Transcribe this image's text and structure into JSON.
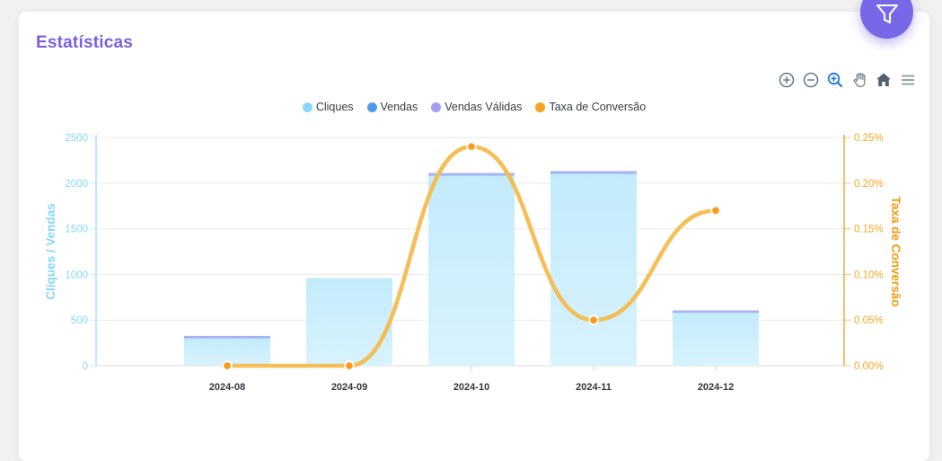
{
  "page": {
    "title": "Estatísticas"
  },
  "header": {
    "filter_button": {
      "icon": "funnel-icon",
      "color": "#7668e6"
    }
  },
  "toolbar": {
    "icons": [
      "zoom-in",
      "zoom-out",
      "selection-zoom",
      "panning",
      "reset-zoom-home",
      "menu"
    ],
    "active_icon": "selection-zoom",
    "active_color": "#2178dd",
    "icon_color": "#6b7b8d"
  },
  "chart_data": {
    "type": "mixed-bar-line",
    "categories": [
      "2024-08",
      "2024-09",
      "2024-10",
      "2024-11",
      "2024-12"
    ],
    "series": [
      {
        "name": "Cliques",
        "type": "bar",
        "axis": "left",
        "color": "#8bd9f7",
        "values": [
          300,
          960,
          2080,
          2100,
          580
        ]
      },
      {
        "name": "Vendas",
        "type": "bar",
        "axis": "left",
        "color": "#4f99e9",
        "values": [
          15,
          0,
          20,
          20,
          15
        ]
      },
      {
        "name": "Vendas Válidas",
        "type": "bar",
        "axis": "left",
        "color": "#a49df5",
        "values": [
          10,
          0,
          12,
          12,
          10
        ]
      },
      {
        "name": "Taxa de Conversão",
        "type": "line",
        "axis": "right",
        "color": "#f9a41f",
        "values": [
          0.0,
          0.0,
          0.24,
          0.05,
          0.17
        ]
      }
    ],
    "stacked_bars": true,
    "title": "",
    "xlabel": "",
    "y_left": {
      "title": "Cliques / Vendas",
      "min": 0,
      "max": 2500,
      "ticks": [
        "2500",
        "2000",
        "1500",
        "1000",
        "500",
        "0"
      ],
      "color": "#85d7f8"
    },
    "y_right": {
      "title": "Taxa de Conversão",
      "min": 0,
      "max": 0.25,
      "ticks": [
        "0.25%",
        "0.20%",
        "0.15%",
        "0.10%",
        "0.05%",
        "0.00%"
      ],
      "color": "#f5a623"
    },
    "legend_position": "top",
    "grid": "horizontal",
    "bar_fill_top": "#c3ebfb",
    "bar_fill_bottom": "#d8f3fd",
    "line_color": "#f6bb4d",
    "marker_color": "#f99c1d",
    "x_label_color": "#33383d"
  }
}
